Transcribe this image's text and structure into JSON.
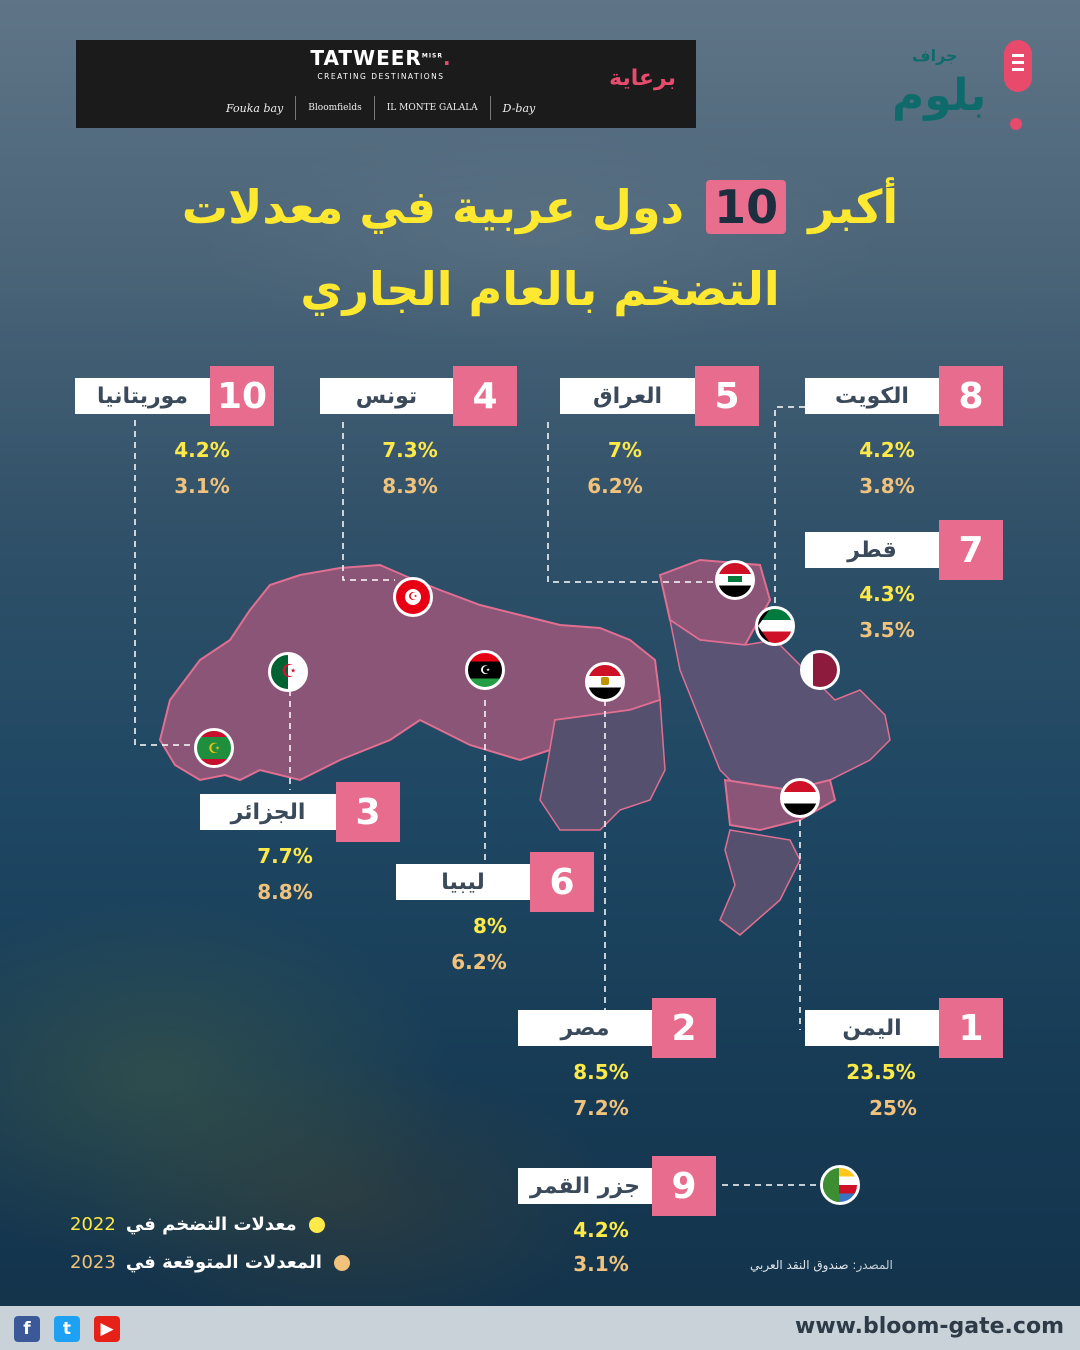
{
  "sponsor": {
    "brand": "TATWEER",
    "brand_suffix": "MISR",
    "tagline": "CREATING DESTINATIONS",
    "projects": [
      "Fouka bay",
      "Bloomfields",
      "IL MONTE GALALA",
      "D-bay"
    ],
    "label": "برعاية"
  },
  "logo": {
    "small": "جراف",
    "big": "بلوم"
  },
  "title": {
    "line1_before": "أكبر",
    "number": "10",
    "line1_after": "دول عربية في معدلات",
    "line2": "التضخم بالعام الجاري"
  },
  "countries": [
    {
      "rank": "10",
      "name": "موريتانيا",
      "inflation_2022": "4.2%",
      "expected_2023": "3.1%",
      "flag": "mauritania-flag"
    },
    {
      "rank": "4",
      "name": "تونس",
      "inflation_2022": "7.3%",
      "expected_2023": "8.3%",
      "flag": "tunisia-flag"
    },
    {
      "rank": "5",
      "name": "العراق",
      "inflation_2022": "7%",
      "expected_2023": "6.2%",
      "flag": "iraq-flag"
    },
    {
      "rank": "8",
      "name": "الكويت",
      "inflation_2022": "4.2%",
      "expected_2023": "3.8%",
      "flag": "kuwait-flag"
    },
    {
      "rank": "7",
      "name": "قطر",
      "inflation_2022": "4.3%",
      "expected_2023": "3.5%",
      "flag": "qatar-flag"
    },
    {
      "rank": "3",
      "name": "الجزائر",
      "inflation_2022": "7.7%",
      "expected_2023": "8.8%",
      "flag": "algeria-flag"
    },
    {
      "rank": "6",
      "name": "ليبيا",
      "inflation_2022": "8%",
      "expected_2023": "6.2%",
      "flag": "libya-flag"
    },
    {
      "rank": "2",
      "name": "مصر",
      "inflation_2022": "8.5%",
      "expected_2023": "7.2%",
      "flag": "egypt-flag"
    },
    {
      "rank": "1",
      "name": "اليمن",
      "inflation_2022": "23.5%",
      "expected_2023": "25%",
      "flag": "yemen-flag"
    },
    {
      "rank": "9",
      "name": "جزر القمر",
      "inflation_2022": "4.2%",
      "expected_2023": "3.1%",
      "flag": "comoros-flag"
    }
  ],
  "legend": {
    "item1": {
      "label": "معدلات التضخم في",
      "year": "2022",
      "color": "#fde948"
    },
    "item2": {
      "label": "المعدلات المتوقعة في",
      "year": "2023",
      "color": "#f0c27b"
    }
  },
  "source": {
    "label": "المصدر:",
    "value": "صندوق النقد العربي"
  },
  "footer": {
    "url": "www.bloom-gate.com",
    "icons": [
      "facebook-icon",
      "twitter-icon",
      "youtube-icon"
    ]
  },
  "colors": {
    "accent_pink": "#e86c8d",
    "map_fill": "#8b5478",
    "map_dark": "#55506e"
  }
}
